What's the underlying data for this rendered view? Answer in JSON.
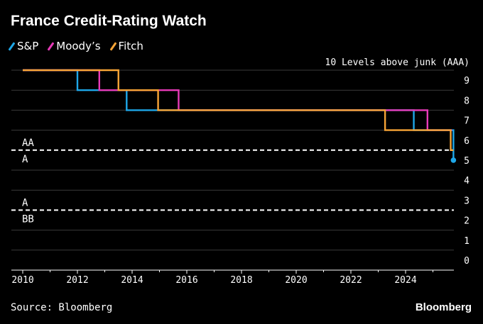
{
  "title": "France Credit-Rating Watch",
  "source": "Source: Bloomberg",
  "brand": "Bloomberg",
  "colors": {
    "background": "#000000",
    "grid": "#3a3a3a",
    "text": "#ffffff"
  },
  "chart_data": {
    "type": "line",
    "title": "France Credit-Rating Watch",
    "ylabel": "10 Levels above junk (AAA)",
    "xlim": [
      2010,
      2026
    ],
    "ylim": [
      0,
      10
    ],
    "x_ticks": [
      "2010",
      "2012",
      "2014",
      "2016",
      "2018",
      "2020",
      "2022",
      "2024"
    ],
    "y_ticks": [
      "0",
      "1",
      "2",
      "3",
      "4",
      "5",
      "6",
      "7",
      "8",
      "9"
    ],
    "grid": true,
    "legend_position": "top-left",
    "series": [
      {
        "name": "S&P",
        "color": "#1ea7e8",
        "step": true,
        "x": [
          2010,
          2012.0,
          2013.8,
          2024.3,
          2025.75
        ],
        "y": [
          10,
          9,
          8,
          7,
          5.5
        ],
        "end_marker": true
      },
      {
        "name": "Moody’s",
        "color": "#e83ab8",
        "step": true,
        "x": [
          2010,
          2012.8,
          2015.7,
          2024.8,
          2025.7
        ],
        "y": [
          10,
          9,
          8,
          7,
          7
        ]
      },
      {
        "name": "Fitch",
        "color": "#f7a436",
        "step": true,
        "x": [
          2010,
          2013.5,
          2014.95,
          2023.25,
          2025.65,
          2025.75
        ],
        "y": [
          10,
          9,
          8,
          7,
          6,
          6
        ]
      }
    ],
    "thresholds": [
      {
        "y": 6,
        "label_above": "AA",
        "label_below": "A"
      },
      {
        "y": 3,
        "label_above": "A",
        "label_below": "BB"
      }
    ]
  }
}
